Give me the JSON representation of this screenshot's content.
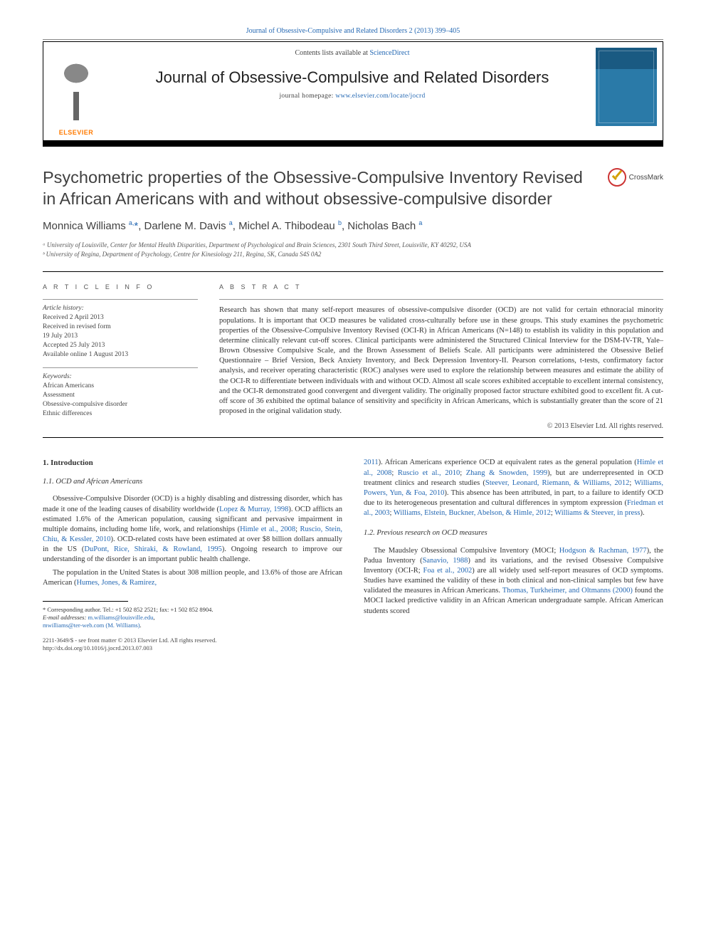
{
  "top_link": "Journal of Obsessive-Compulsive and Related Disorders 2 (2013) 399–405",
  "header": {
    "contents_prefix": "Contents lists available at ",
    "contents_link": "ScienceDirect",
    "journal": "Journal of Obsessive-Compulsive and Related Disorders",
    "homepage_prefix": "journal homepage: ",
    "homepage_url": "www.elsevier.com/locate/jocrd",
    "publisher": "ELSEVIER"
  },
  "crossmark": "CrossMark",
  "title": "Psychometric properties of the Obsessive-Compulsive Inventory Revised in African Americans with and without obsessive-compulsive disorder",
  "authors_html": "Monnica Williams <sup>a,</sup><span class='ast'>*</span>, Darlene M. Davis <sup>a</sup>, Michel A. Thibodeau <sup>b</sup>, Nicholas Bach <sup>a</sup>",
  "affiliations": [
    "ᵃ University of Louisville, Center for Mental Health Disparities, Department of Psychological and Brain Sciences, 2301 South Third Street, Louisville, KY 40292, USA",
    "ᵇ University of Regina, Department of Psychology, Centre for Kinesiology 211, Regina, SK, Canada S4S 0A2"
  ],
  "info_head": "A R T I C L E  I N F O",
  "abstract_head": "A B S T R A C T",
  "history": {
    "label": "Article history:",
    "items": [
      "Received 2 April 2013",
      "Received in revised form",
      "19 July 2013",
      "Accepted 25 July 2013",
      "Available online 1 August 2013"
    ]
  },
  "keywords": {
    "label": "Keywords:",
    "items": [
      "African Americans",
      "Assessment",
      "Obsessive-compulsive disorder",
      "Ethnic differences"
    ]
  },
  "abstract": "Research has shown that many self-report measures of obsessive-compulsive disorder (OCD) are not valid for certain ethnoracial minority populations. It is important that OCD measures be validated cross-culturally before use in these groups. This study examines the psychometric properties of the Obsessive-Compulsive Inventory Revised (OCI-R) in African Americans (N=148) to establish its validity in this population and determine clinically relevant cut-off scores. Clinical participants were administered the Structured Clinical Interview for the DSM-IV-TR, Yale–Brown Obsessive Compulsive Scale, and the Brown Assessment of Beliefs Scale. All participants were administered the Obsessive Belief Questionnaire – Brief Version, Beck Anxiety Inventory, and Beck Depression Inventory-II. Pearson correlations, t-tests, confirmatory factor analysis, and receiver operating characteristic (ROC) analyses were used to explore the relationship between measures and estimate the ability of the OCI-R to differentiate between individuals with and without OCD. Almost all scale scores exhibited acceptable to excellent internal consistency, and the OCI-R demonstrated good convergent and divergent validity. The originally proposed factor structure exhibited good to excellent fit. A cut-off score of 36 exhibited the optimal balance of sensitivity and specificity in African Americans, which is substantially greater than the score of 21 proposed in the original validation study.",
  "copyright": "© 2013 Elsevier Ltd. All rights reserved.",
  "sections": {
    "s1": "1.  Introduction",
    "s11": "1.1.  OCD and African Americans",
    "s12": "1.2.  Previous research on OCD measures"
  },
  "body": {
    "p1a": "Obsessive-Compulsive Disorder (OCD) is a highly disabling and distressing disorder, which has made it one of the leading causes of disability worldwide (",
    "p1r1": "Lopez & Murray, 1998",
    "p1b": "). OCD afflicts an estimated 1.6% of the American population, causing significant and pervasive impairment in multiple domains, including home life, work, and relationships (",
    "p1r2": "Himle et al., 2008",
    "p1c": "; ",
    "p1r3": "Ruscio, Stein, Chiu, & Kessler, 2010",
    "p1d": "). OCD-related costs have been estimated at over $8 billion dollars annually in the US (",
    "p1r4": "DuPont, Rice, Shiraki, & Rowland, 1995",
    "p1e": "). Ongoing research to improve our understanding of the disorder is an important public health challenge.",
    "p2a": "The population in the United States is about 308 million people, and 13.6% of those are African American (",
    "p2r1": "Humes, Jones, & Ramirez,",
    "p3r0": "2011",
    "p3a": "). African Americans experience OCD at equivalent rates as the general population (",
    "p3r1": "Himle et al., 2008",
    "p3b": "; ",
    "p3r2": "Ruscio et al., 2010",
    "p3c": "; ",
    "p3r3": "Zhang & Snowden, 1999",
    "p3d": "), but are underrepresented in OCD treatment clinics and research studies (",
    "p3r4": "Steever, Leonard, Riemann, & Williams, 2012",
    "p3e": "; ",
    "p3r5": "Williams, Powers, Yun, & Foa, 2010",
    "p3f": "). This absence has been attributed, in part, to a failure to identify OCD due to its heterogeneous presentation and cultural differences in symptom expression (",
    "p3r6": "Friedman et al., 2003",
    "p3g": "; ",
    "p3r7": "Williams, Elstein, Buckner, Abelson, & Himle, 2012",
    "p3h": "; ",
    "p3r8": "Williams & Steever, in press",
    "p3i": ").",
    "p4a": "The Maudsley Obsessional Compulsive Inventory (MOCI; ",
    "p4r1": "Hodgson & Rachman, 1977",
    "p4b": "), the Padua Inventory (",
    "p4r2": "Sanavio, 1988",
    "p4c": ") and its variations, and the revised Obsessive Compulsive Inventory (OCI-R; ",
    "p4r3": "Foa et al., 2002",
    "p4d": ") are all widely used self-report measures of OCD symptoms. Studies have examined the validity of these in both clinical and non-clinical samples but few have validated the measures in African Americans. ",
    "p4r4": "Thomas, Turkheimer, and Oltmanns (2000)",
    "p4e": " found the MOCI lacked predictive validity in an African American undergraduate sample. African American students scored"
  },
  "footnote": {
    "corr": "* Corresponding author. Tel.: +1 502 852 2521; fax: +1 502 852 8904.",
    "email_label": "E-mail addresses: ",
    "email1": "m.williams@louisville.edu",
    "sep": ",",
    "email2": "mwilliams@ter-web.com (M. Williams)",
    "dot": "."
  },
  "footer": {
    "l1": "2211-3649/$ - see front matter © 2013 Elsevier Ltd. All rights reserved.",
    "l2": "http://dx.doi.org/10.1016/j.jocrd.2013.07.003"
  },
  "colors": {
    "link": "#2468b3",
    "elsevier_orange": "#ff7a00",
    "cover_blue": "#2a7aa8"
  }
}
